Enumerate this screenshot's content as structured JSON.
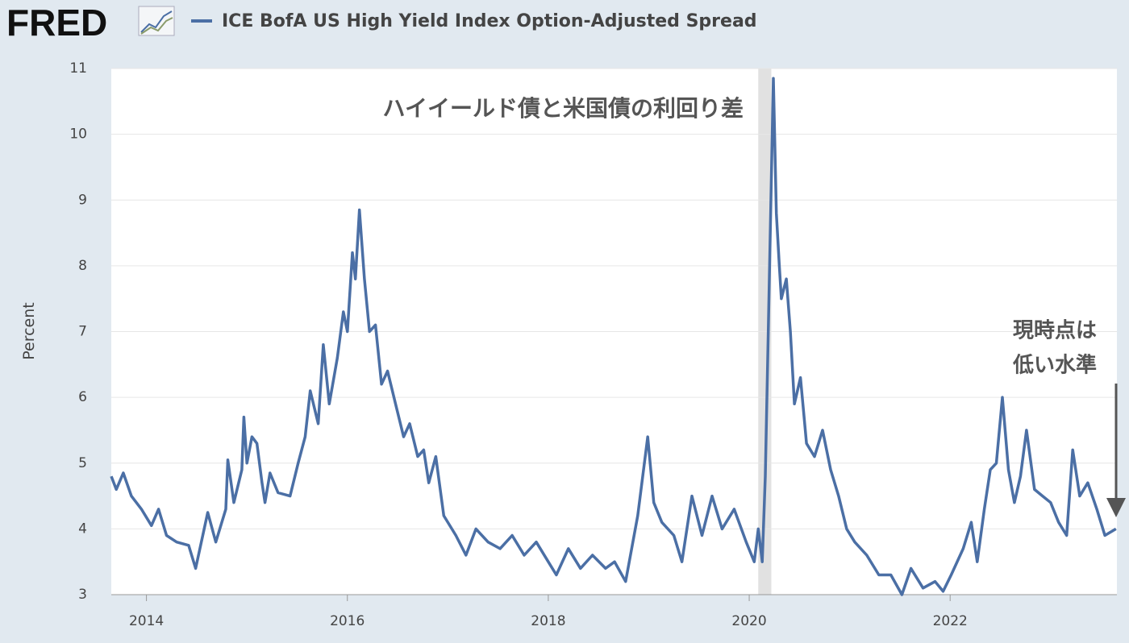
{
  "chart_data": {
    "type": "line",
    "logo": "FRED",
    "ylabel": "Percent",
    "annotations": [
      "ハイイールド債と米国債の利回り差",
      "現時点は",
      "低い水準"
    ],
    "xlim": [
      2013.65,
      2023.66
    ],
    "xticks": [
      2014,
      2016,
      2018,
      2020,
      2022
    ],
    "ylim": [
      3,
      11
    ],
    "yticks": [
      3,
      4,
      5,
      6,
      7,
      8,
      9,
      10,
      11
    ],
    "grid": true,
    "recessions": [
      [
        2020.09,
        2020.22
      ]
    ],
    "x": [
      2013.65,
      2013.7,
      2013.77,
      2013.85,
      2013.95,
      2014.05,
      2014.12,
      2014.2,
      2014.3,
      2014.42,
      2014.49,
      2014.61,
      2014.69,
      2014.79,
      2014.81,
      2014.87,
      2014.95,
      2014.97,
      2015.0,
      2015.05,
      2015.1,
      2015.15,
      2015.18,
      2015.23,
      2015.31,
      2015.43,
      2015.51,
      2015.58,
      2015.63,
      2015.71,
      2015.76,
      2015.82,
      2015.9,
      2015.96,
      2016.0,
      2016.05,
      2016.08,
      2016.12,
      2016.17,
      2016.22,
      2016.28,
      2016.34,
      2016.4,
      2016.48,
      2016.56,
      2016.62,
      2016.7,
      2016.76,
      2016.81,
      2016.88,
      2016.96,
      2017.08,
      2017.18,
      2017.28,
      2017.4,
      2017.52,
      2017.64,
      2017.76,
      2017.88,
      2018.0,
      2018.08,
      2018.2,
      2018.32,
      2018.44,
      2018.57,
      2018.66,
      2018.77,
      2018.89,
      2018.99,
      2019.05,
      2019.13,
      2019.25,
      2019.33,
      2019.43,
      2019.53,
      2019.63,
      2019.73,
      2019.85,
      2019.97,
      2020.05,
      2020.09,
      2020.13,
      2020.16,
      2020.19,
      2020.24,
      2020.27,
      2020.3,
      2020.32,
      2020.37,
      2020.41,
      2020.45,
      2020.51,
      2020.57,
      2020.65,
      2020.73,
      2020.81,
      2020.89,
      2020.97,
      2021.05,
      2021.17,
      2021.29,
      2021.41,
      2021.52,
      2021.61,
      2021.73,
      2021.85,
      2021.93,
      2022.01,
      2022.13,
      2022.21,
      2022.27,
      2022.34,
      2022.4,
      2022.46,
      2022.52,
      2022.58,
      2022.64,
      2022.7,
      2022.76,
      2022.84,
      2022.92,
      2023.0,
      2023.08,
      2023.16,
      2023.22,
      2023.29,
      2023.37,
      2023.46,
      2023.54,
      2023.65
    ],
    "series": [
      {
        "name": "ICE BofA US High Yield Index Option-Adjusted Spread",
        "color": "#4b6fa5",
        "values": [
          4.8,
          4.6,
          4.85,
          4.5,
          4.3,
          4.05,
          4.3,
          3.9,
          3.8,
          3.75,
          3.4,
          4.25,
          3.8,
          4.3,
          5.05,
          4.4,
          4.9,
          5.7,
          5.0,
          5.4,
          5.3,
          4.7,
          4.4,
          4.85,
          4.55,
          4.5,
          5.0,
          5.4,
          6.1,
          5.6,
          6.8,
          5.9,
          6.6,
          7.3,
          7.0,
          8.2,
          7.8,
          8.85,
          7.8,
          7.0,
          7.1,
          6.2,
          6.4,
          5.9,
          5.4,
          5.6,
          5.1,
          5.2,
          4.7,
          5.1,
          4.2,
          3.9,
          3.6,
          4.0,
          3.8,
          3.7,
          3.9,
          3.6,
          3.8,
          3.5,
          3.3,
          3.7,
          3.4,
          3.6,
          3.4,
          3.5,
          3.2,
          4.2,
          5.4,
          4.4,
          4.1,
          3.9,
          3.5,
          4.5,
          3.9,
          4.5,
          4.0,
          4.3,
          3.8,
          3.5,
          4.0,
          3.5,
          4.8,
          7.0,
          10.85,
          8.8,
          8.0,
          7.5,
          7.8,
          7.0,
          5.9,
          6.3,
          5.3,
          5.1,
          5.5,
          4.9,
          4.5,
          4.0,
          3.8,
          3.6,
          3.3,
          3.3,
          3.0,
          3.4,
          3.1,
          3.2,
          3.05,
          3.3,
          3.7,
          4.1,
          3.5,
          4.3,
          4.9,
          5.0,
          6.0,
          4.9,
          4.4,
          4.8,
          5.5,
          4.6,
          4.5,
          4.4,
          4.1,
          3.9,
          5.2,
          4.5,
          4.7,
          4.3,
          3.9,
          4.0
        ]
      }
    ]
  }
}
